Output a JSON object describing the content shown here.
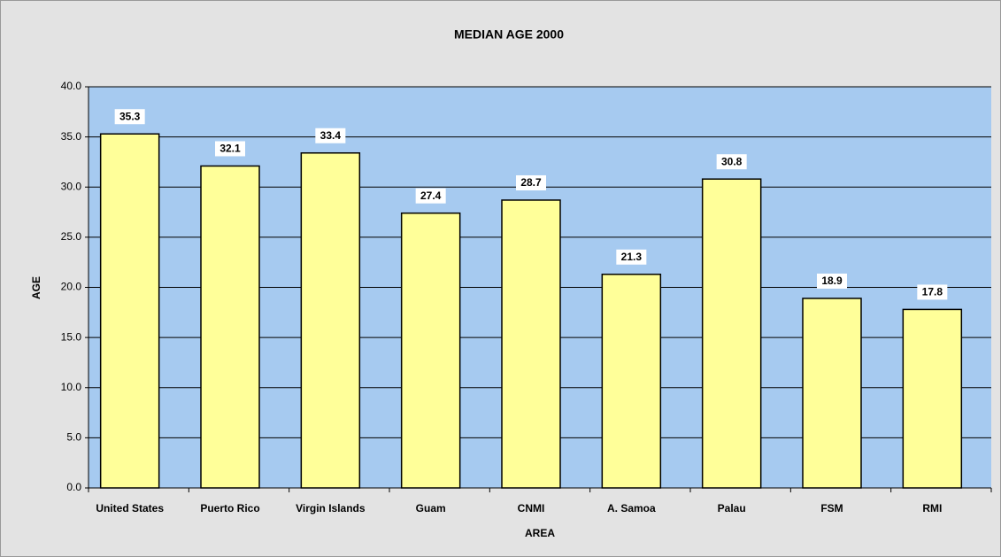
{
  "chart_data": {
    "type": "bar",
    "title": "MEDIAN AGE 2000",
    "x_label": "AREA",
    "y_label": "AGE",
    "categories": [
      "United States",
      "Puerto Rico",
      "Virgin Islands",
      "Guam",
      "CNMI",
      "A. Samoa",
      "Palau",
      "FSM",
      "RMI"
    ],
    "values": [
      35.3,
      32.1,
      33.4,
      27.4,
      28.7,
      21.3,
      30.8,
      18.9,
      17.8
    ],
    "color": "#ffff99",
    "ylim": [
      0,
      40
    ],
    "yticks": [
      {
        "value": 0,
        "label": "0.0"
      },
      {
        "value": 5,
        "label": "5.0"
      },
      {
        "value": 10,
        "label": "10.0"
      },
      {
        "value": 15,
        "label": "15.0"
      },
      {
        "value": 20,
        "label": "20.0"
      },
      {
        "value": 25,
        "label": "25.0"
      },
      {
        "value": 30,
        "label": "30.0"
      },
      {
        "value": 35,
        "label": "35.0"
      },
      {
        "value": 40,
        "label": "40.0"
      }
    ],
    "grid": true
  }
}
